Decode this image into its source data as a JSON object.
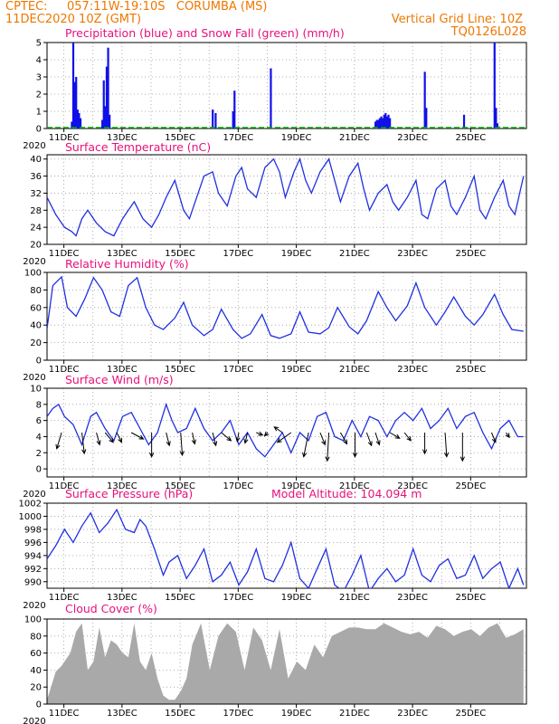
{
  "header": {
    "source": "CPTEC:",
    "location": "057:11W-19:10S   CORUMBA (MS)",
    "run": "11DEC2020 10Z (GMT)",
    "grid_note": "Vertical Grid Line: 10Z",
    "code": "TQ0126L028"
  },
  "x_tick_labels": [
    "11DEC",
    "13DEC",
    "15DEC",
    "17DEC",
    "19DEC",
    "21DEC",
    "23DEC",
    "25DEC"
  ],
  "x_year_label": "2020",
  "colors": {
    "header": "#ee7700",
    "panel_title": "#e8107a",
    "precip": "#1010e8",
    "snow": "#00b000",
    "line": "#2030e0",
    "cloud": "#a9a9a9"
  },
  "chart_data": [
    {
      "id": "precip",
      "type": "bar",
      "title": "Precipitation (blue) and Snow Fall (green) (mm/h)",
      "ylim": [
        0,
        5
      ],
      "yticks": [
        0,
        1,
        2,
        3,
        4,
        5
      ],
      "x_unit": "days since 11DEC 10Z",
      "series": [
        {
          "name": "Precipitation",
          "points": [
            [
              0.85,
              0.4
            ],
            [
              0.9,
              5.0
            ],
            [
              0.95,
              2.7
            ],
            [
              1.0,
              3.0
            ],
            [
              1.05,
              1.1
            ],
            [
              1.1,
              0.9
            ],
            [
              1.15,
              0.6
            ],
            [
              1.9,
              0.5
            ],
            [
              1.95,
              2.8
            ],
            [
              2.0,
              1.3
            ],
            [
              2.05,
              3.6
            ],
            [
              2.1,
              4.7
            ],
            [
              2.15,
              0.8
            ],
            [
              5.7,
              1.1
            ],
            [
              5.8,
              0.9
            ],
            [
              6.4,
              1.0
            ],
            [
              6.45,
              2.2
            ],
            [
              7.7,
              3.5
            ],
            [
              11.3,
              0.4
            ],
            [
              11.35,
              0.5
            ],
            [
              11.4,
              0.5
            ],
            [
              11.45,
              0.6
            ],
            [
              11.5,
              0.7
            ],
            [
              11.55,
              0.6
            ],
            [
              11.6,
              0.8
            ],
            [
              11.65,
              0.9
            ],
            [
              11.7,
              0.7
            ],
            [
              11.75,
              0.8
            ],
            [
              11.8,
              0.6
            ],
            [
              13.0,
              3.3
            ],
            [
              13.05,
              1.2
            ],
            [
              14.35,
              0.8
            ],
            [
              15.4,
              5.0
            ],
            [
              15.45,
              1.2
            ],
            [
              15.5,
              0.3
            ]
          ]
        },
        {
          "name": "Snow Fall",
          "points": []
        }
      ]
    },
    {
      "id": "temp",
      "type": "line",
      "title": "Surface Temperature (nC)",
      "ylim": [
        20,
        41
      ],
      "yticks": [
        20,
        24,
        28,
        32,
        36,
        40
      ],
      "series": [
        {
          "name": "Temperature",
          "x": [
            0,
            0.3,
            0.6,
            0.85,
            1.0,
            1.2,
            1.4,
            1.7,
            2.0,
            2.3,
            2.45,
            2.6,
            2.8,
            3.0,
            3.3,
            3.6,
            3.85,
            4.1,
            4.4,
            4.7,
            4.9,
            5.1,
            5.4,
            5.7,
            5.9,
            6.2,
            6.5,
            6.7,
            6.9,
            7.2,
            7.5,
            7.8,
            8.0,
            8.2,
            8.5,
            8.7,
            8.9,
            9.1,
            9.4,
            9.7,
            9.9,
            10.1,
            10.4,
            10.7,
            10.9,
            11.1,
            11.4,
            11.7,
            11.9,
            12.1,
            12.4,
            12.7,
            12.9,
            13.1,
            13.4,
            13.7,
            13.9,
            14.1,
            14.4,
            14.7,
            14.9,
            15.1,
            15.4,
            15.7,
            15.9,
            16.1,
            16.4
          ],
          "values": [
            31,
            27,
            24,
            23,
            22,
            26,
            28,
            25,
            23,
            22,
            24,
            26,
            28,
            30,
            26,
            24,
            27,
            31,
            35,
            28,
            26,
            30,
            36,
            37,
            32,
            29,
            36,
            38,
            33,
            31,
            38,
            40,
            37,
            31,
            37,
            40,
            35,
            32,
            37,
            40,
            35,
            30,
            36,
            39,
            33,
            28,
            32,
            34,
            30,
            28,
            31,
            35,
            27,
            26,
            33,
            35,
            29,
            27,
            31,
            36,
            28,
            26,
            31,
            35,
            29,
            27,
            36
          ]
        }
      ]
    },
    {
      "id": "rh",
      "type": "line",
      "title": "Relative Humidity (%)",
      "ylim": [
        0,
        100
      ],
      "yticks": [
        0,
        20,
        40,
        60,
        80,
        100
      ],
      "series": [
        {
          "name": "Relative Humidity",
          "x": [
            0,
            0.2,
            0.5,
            0.7,
            1.0,
            1.3,
            1.6,
            1.9,
            2.2,
            2.5,
            2.8,
            3.1,
            3.4,
            3.7,
            4.0,
            4.4,
            4.7,
            5.0,
            5.4,
            5.7,
            6.0,
            6.4,
            6.7,
            7.0,
            7.4,
            7.7,
            8.0,
            8.4,
            8.7,
            9.0,
            9.4,
            9.7,
            10.0,
            10.4,
            10.7,
            11.0,
            11.4,
            11.7,
            12.0,
            12.4,
            12.7,
            13.0,
            13.4,
            13.7,
            14.0,
            14.4,
            14.7,
            15.0,
            15.4,
            15.7,
            16.0,
            16.4
          ],
          "values": [
            36,
            85,
            95,
            60,
            50,
            70,
            94,
            80,
            55,
            50,
            85,
            94,
            60,
            40,
            35,
            48,
            66,
            40,
            28,
            35,
            58,
            35,
            25,
            30,
            52,
            28,
            25,
            30,
            55,
            32,
            30,
            37,
            60,
            38,
            30,
            45,
            78,
            60,
            45,
            62,
            88,
            60,
            40,
            55,
            72,
            50,
            40,
            52,
            75,
            52,
            35,
            33
          ]
        }
      ]
    },
    {
      "id": "wind",
      "type": "line",
      "title": "Surface Wind (m/s)",
      "ylim": [
        -1,
        10
      ],
      "yticks": [
        0,
        2,
        4,
        6,
        8,
        10
      ],
      "series": [
        {
          "name": "Wind speed",
          "x": [
            0,
            0.2,
            0.4,
            0.6,
            0.9,
            1.2,
            1.5,
            1.7,
            2.0,
            2.3,
            2.6,
            2.9,
            3.2,
            3.5,
            3.8,
            4.1,
            4.3,
            4.5,
            4.8,
            5.1,
            5.4,
            5.7,
            6.0,
            6.3,
            6.6,
            6.9,
            7.2,
            7.5,
            7.8,
            8.1,
            8.4,
            8.7,
            9.0,
            9.3,
            9.6,
            9.9,
            10.2,
            10.5,
            10.8,
            11.1,
            11.4,
            11.7,
            12.0,
            12.3,
            12.6,
            12.9,
            13.2,
            13.5,
            13.8,
            14.1,
            14.4,
            14.7,
            15.0,
            15.3,
            15.6,
            15.9,
            16.2,
            16.4
          ],
          "values": [
            6.5,
            7.5,
            8.0,
            6.5,
            5.5,
            3.0,
            6.5,
            7.0,
            5.0,
            3.5,
            6.5,
            7.0,
            5.0,
            3.0,
            4.5,
            8.0,
            6.0,
            4.5,
            5.0,
            7.5,
            5.0,
            3.5,
            4.5,
            6.0,
            3.0,
            4.5,
            2.5,
            1.5,
            3.0,
            4.5,
            2.0,
            4.5,
            3.5,
            6.5,
            7.0,
            4.0,
            3.5,
            6.0,
            4.0,
            6.5,
            6.0,
            4.0,
            6.0,
            7.0,
            6.0,
            7.5,
            5.0,
            6.0,
            7.5,
            5.0,
            6.5,
            7.0,
            4.5,
            2.5,
            5.0,
            6.0,
            4.0,
            4.0
          ]
        }
      ],
      "arrows": [
        {
          "x": 0.5,
          "u": -0.6,
          "v": -2.0
        },
        {
          "x": 1.2,
          "u": 0.3,
          "v": -2.6
        },
        {
          "x": 1.7,
          "u": 0.4,
          "v": -1.5
        },
        {
          "x": 2.0,
          "u": 1.0,
          "v": -1.2
        },
        {
          "x": 2.4,
          "u": 0.6,
          "v": -1.2
        },
        {
          "x": 2.9,
          "u": 1.5,
          "v": -0.8
        },
        {
          "x": 3.6,
          "u": 0.0,
          "v": -3.0
        },
        {
          "x": 4.1,
          "u": 0.4,
          "v": -1.6
        },
        {
          "x": 4.6,
          "u": 0.2,
          "v": -2.8
        },
        {
          "x": 5.0,
          "u": 0.3,
          "v": -1.4
        },
        {
          "x": 5.7,
          "u": 0.4,
          "v": -1.6
        },
        {
          "x": 6.0,
          "u": 1.2,
          "v": -1.0
        },
        {
          "x": 6.6,
          "u": -0.2,
          "v": -1.1
        },
        {
          "x": 6.9,
          "u": -0.3,
          "v": -1.3
        },
        {
          "x": 7.2,
          "u": 0.8,
          "v": -0.3
        },
        {
          "x": 7.6,
          "u": -0.4,
          "v": -0.4
        },
        {
          "x": 8.1,
          "u": -1.0,
          "v": 0.7
        },
        {
          "x": 8.4,
          "u": -1.7,
          "v": -1.2
        },
        {
          "x": 9.0,
          "u": -0.6,
          "v": -3.0
        },
        {
          "x": 9.4,
          "u": 0.6,
          "v": -1.5
        },
        {
          "x": 9.7,
          "u": -0.2,
          "v": -3.5
        },
        {
          "x": 10.1,
          "u": 0.8,
          "v": -1.4
        },
        {
          "x": 10.6,
          "u": 0.0,
          "v": -3.0
        },
        {
          "x": 11.0,
          "u": 0.6,
          "v": -1.6
        },
        {
          "x": 11.3,
          "u": 0.5,
          "v": -1.5
        },
        {
          "x": 11.8,
          "u": 1.2,
          "v": -0.7
        },
        {
          "x": 12.3,
          "u": 0.8,
          "v": -1.0
        },
        {
          "x": 13.0,
          "u": 0.0,
          "v": -2.6
        },
        {
          "x": 13.7,
          "u": 0.2,
          "v": -3.0
        },
        {
          "x": 14.3,
          "u": 0.0,
          "v": -3.5
        },
        {
          "x": 15.3,
          "u": 0.5,
          "v": -1.2
        },
        {
          "x": 15.8,
          "u": 0.4,
          "v": -0.6
        }
      ]
    },
    {
      "id": "pressure",
      "type": "line",
      "title": "Surface Pressure (hPa)",
      "annotation": "Model Altitude: 104.094 m",
      "ylim": [
        989,
        1002
      ],
      "yticks": [
        990,
        992,
        994,
        996,
        998,
        1000,
        1002
      ],
      "series": [
        {
          "name": "Pressure",
          "x": [
            0,
            0.3,
            0.6,
            0.9,
            1.2,
            1.5,
            1.8,
            2.1,
            2.4,
            2.7,
            3.0,
            3.2,
            3.4,
            3.7,
            4.0,
            4.2,
            4.5,
            4.8,
            5.1,
            5.4,
            5.7,
            6.0,
            6.3,
            6.6,
            6.9,
            7.2,
            7.5,
            7.8,
            8.1,
            8.4,
            8.7,
            9.0,
            9.3,
            9.6,
            9.9,
            10.2,
            10.5,
            10.8,
            11.1,
            11.4,
            11.7,
            12.0,
            12.3,
            12.6,
            12.9,
            13.2,
            13.5,
            13.8,
            14.1,
            14.4,
            14.7,
            15.0,
            15.3,
            15.6,
            15.9,
            16.2,
            16.4
          ],
          "values": [
            993.5,
            995.5,
            998.0,
            996.0,
            998.5,
            1000.5,
            997.5,
            999.0,
            1001.0,
            998.0,
            997.5,
            999.5,
            998.5,
            995.0,
            991.0,
            993.0,
            994.0,
            990.5,
            992.5,
            995.0,
            990.0,
            991.0,
            993.0,
            989.5,
            991.5,
            995.0,
            990.5,
            990.0,
            992.5,
            996.0,
            990.5,
            989.0,
            992.0,
            995.0,
            989.5,
            988.5,
            991.0,
            994.0,
            988.5,
            990.5,
            992.0,
            990.0,
            991.0,
            995.0,
            991.0,
            990.0,
            992.5,
            993.5,
            990.5,
            991.0,
            994.0,
            990.5,
            992.0,
            993.0,
            989.0,
            992.0,
            989.5
          ]
        }
      ]
    },
    {
      "id": "cloud",
      "type": "area",
      "title": "Cloud Cover (%)",
      "ylim": [
        0,
        100
      ],
      "yticks": [
        0,
        20,
        40,
        60,
        80,
        100
      ],
      "series": [
        {
          "name": "Cloud Cover",
          "x": [
            0,
            0.3,
            0.5,
            0.8,
            1.0,
            1.2,
            1.4,
            1.6,
            1.8,
            2.0,
            2.2,
            2.4,
            2.6,
            2.8,
            3.0,
            3.2,
            3.4,
            3.6,
            3.8,
            4.0,
            4.2,
            4.4,
            4.6,
            4.8,
            5.0,
            5.3,
            5.6,
            5.9,
            6.2,
            6.5,
            6.8,
            7.1,
            7.4,
            7.7,
            8.0,
            8.3,
            8.6,
            8.9,
            9.2,
            9.5,
            9.8,
            10.1,
            10.4,
            10.7,
            11.0,
            11.3,
            11.6,
            11.9,
            12.2,
            12.5,
            12.8,
            13.1,
            13.4,
            13.7,
            14.0,
            14.3,
            14.6,
            14.9,
            15.2,
            15.5,
            15.8,
            16.1,
            16.4
          ],
          "values": [
            5,
            38,
            45,
            60,
            85,
            95,
            40,
            50,
            90,
            55,
            75,
            70,
            60,
            55,
            95,
            50,
            40,
            60,
            30,
            10,
            5,
            5,
            15,
            30,
            70,
            95,
            40,
            80,
            95,
            85,
            40,
            90,
            75,
            40,
            88,
            30,
            50,
            40,
            70,
            55,
            80,
            85,
            90,
            90,
            88,
            88,
            95,
            90,
            85,
            82,
            85,
            78,
            92,
            88,
            80,
            85,
            88,
            80,
            90,
            95,
            78,
            82,
            88
          ]
        }
      ]
    }
  ]
}
